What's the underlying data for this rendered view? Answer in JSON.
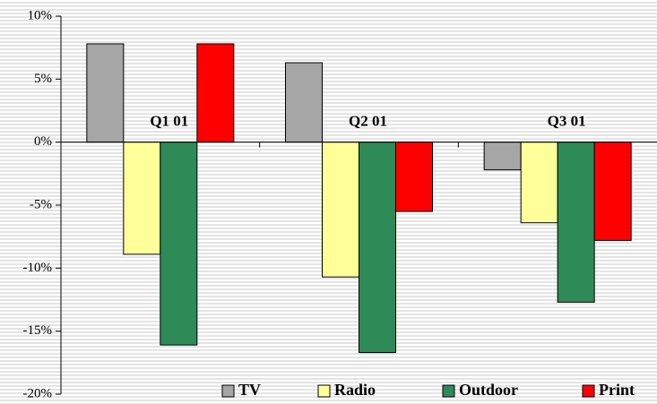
{
  "chart_data": {
    "type": "bar",
    "categories": [
      "Q1 01",
      "Q2 01",
      "Q3 01"
    ],
    "series": [
      {
        "name": "TV",
        "color": "#a6a6a6",
        "values": [
          7.8,
          6.3,
          -2.2
        ]
      },
      {
        "name": "Radio",
        "color": "#ffff99",
        "values": [
          -8.9,
          -10.7,
          -6.4
        ]
      },
      {
        "name": "Outdoor",
        "color": "#2e8b57",
        "values": [
          -16.1,
          -16.7,
          -12.7
        ]
      },
      {
        "name": "Print",
        "color": "#ff0000",
        "values": [
          7.8,
          -5.5,
          -7.8
        ]
      }
    ],
    "ylim": [
      -20,
      10
    ],
    "yticks": [
      {
        "value": -20,
        "label": "-20%"
      },
      {
        "value": -15,
        "label": "-15%"
      },
      {
        "value": -10,
        "label": "-10%"
      },
      {
        "value": -5,
        "label": "-5%"
      },
      {
        "value": 0,
        "label": "0%"
      },
      {
        "value": 5,
        "label": "5%"
      },
      {
        "value": 10,
        "label": "10%"
      }
    ],
    "legend": "bottom-right"
  }
}
